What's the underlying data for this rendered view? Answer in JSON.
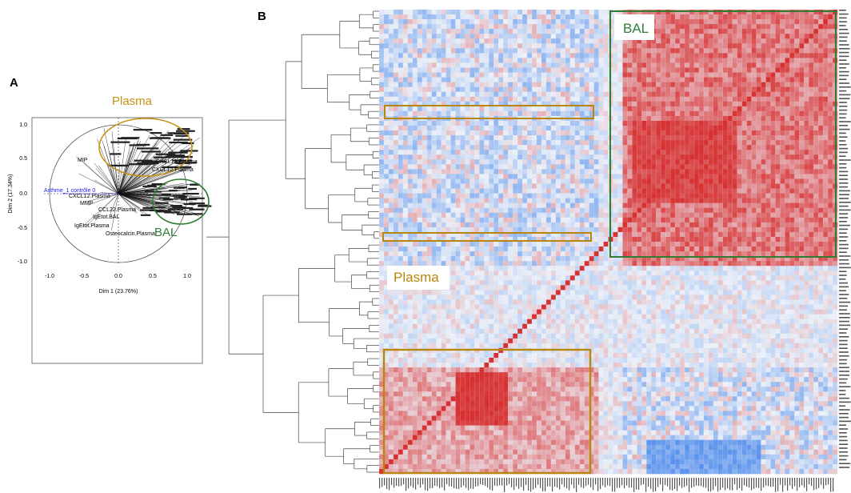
{
  "panel_a": {
    "letter": "A",
    "xlabel": "Dim 1 (23.76%)",
    "ylabel": "Dim 2 (17.34%)",
    "x_ticks": [
      "-1.0",
      "-0.5",
      "0.0",
      "0.5",
      "1.0"
    ],
    "y_ticks": [
      "1.0",
      "0.5",
      "0.0",
      "-0.5",
      "-1.0"
    ],
    "group_plasma": "Plasma",
    "group_bal": "BAL",
    "supplementary_label": "Asthme_1 contrôle 0",
    "variable_labels": [
      "CXCL13.Plasma",
      "CXCL12.Plasma",
      "MMP",
      "IgEtot.BAL",
      "IgEtot.Plasma",
      "Osteocalcin.Plasma",
      "CCL22.Plasma",
      "MIP"
    ],
    "colors": {
      "plasma": "#b8860b",
      "bal": "#2e7d32",
      "supplementary": "#1a1aee"
    }
  },
  "panel_b": {
    "letter": "B",
    "bal_label": "BAL",
    "plasma_label": "Plasma",
    "colors": {
      "high": "#d32f2f",
      "low": "#5b8def",
      "bal_box": "#2e7d32",
      "plasma_box": "#b8860b"
    }
  },
  "chart_data": [
    {
      "type": "scatter",
      "xlabel": "Dim 1 (23.76%)",
      "ylabel": "Dim 2 (17.34%)",
      "xlim": [
        -1.2,
        1.2
      ],
      "ylim": [
        -1.1,
        1.1
      ],
      "grid": false
    },
    {
      "type": "heatmap",
      "groups": [
        "BAL",
        "Plasma"
      ],
      "grid": false
    }
  ]
}
